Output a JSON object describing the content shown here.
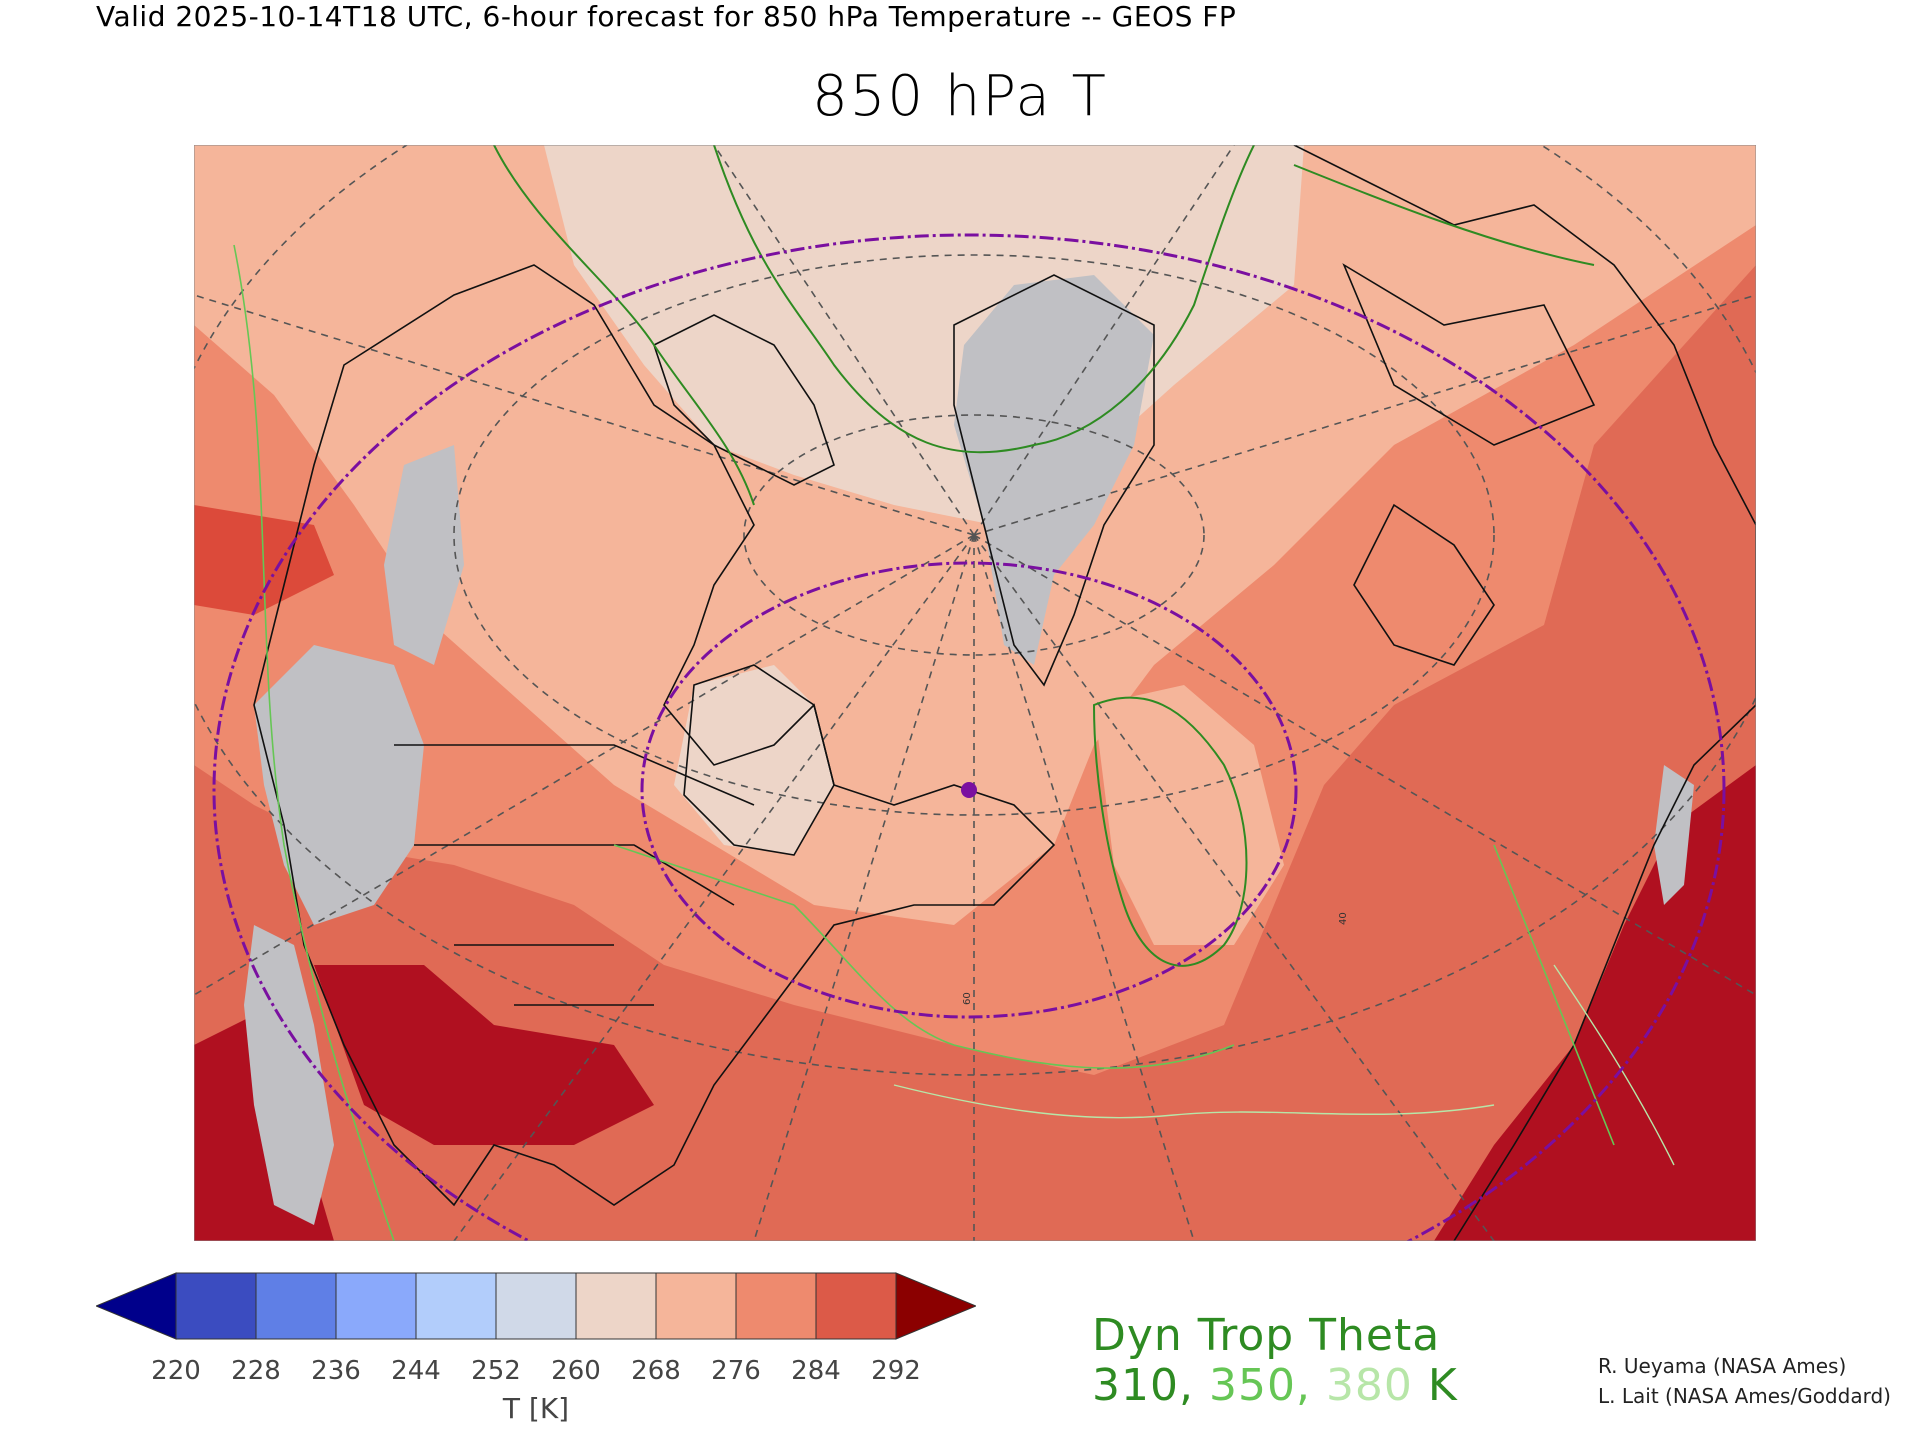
{
  "header": {
    "valid_line": "Valid 2025-10-14T18 UTC, 6-hour forecast for 850 hPa Temperature -- GEOS FP",
    "title": "850 hPa T"
  },
  "colorbar": {
    "tick_labels": [
      "220",
      "228",
      "236",
      "244",
      "252",
      "260",
      "268",
      "276",
      "284",
      "292"
    ],
    "unit_label": "T [K]",
    "bins": [
      {
        "range": "< 220",
        "color": "#00008b"
      },
      {
        "range": "220-228",
        "color": "#3b4cc0"
      },
      {
        "range": "228-236",
        "color": "#5f7fe6"
      },
      {
        "range": "236-244",
        "color": "#8aa9fb"
      },
      {
        "range": "244-252",
        "color": "#b2cdfb"
      },
      {
        "range": "252-260",
        "color": "#d0d9e8"
      },
      {
        "range": "260-268",
        "color": "#edd5c8"
      },
      {
        "range": "268-276",
        "color": "#f5b59a"
      },
      {
        "range": "276-284",
        "color": "#ee8a6e"
      },
      {
        "range": "284-292",
        "color": "#dc5a48"
      },
      {
        "range": "> 292",
        "color": "#8b0000"
      }
    ]
  },
  "contour_legend": {
    "title": "Dyn Trop Theta",
    "values": [
      {
        "text": "310",
        "color": "#2e8b22"
      },
      {
        "text": "350",
        "color": "#66c655"
      },
      {
        "text": "380",
        "color": "#b7e6a8"
      }
    ],
    "separator": ", ",
    "unit": " K"
  },
  "credits": {
    "line1": "R. Ueyama (NASA Ames)",
    "line2": "L. Lait (NASA Ames/Goddard)"
  },
  "map": {
    "ocean_base_color": "#e06a55",
    "range_ring_color": "#7a0fa0",
    "marker_color": "#7a0fa0",
    "grid_color": "#555555",
    "grid_labels": [
      "60",
      "40"
    ]
  }
}
